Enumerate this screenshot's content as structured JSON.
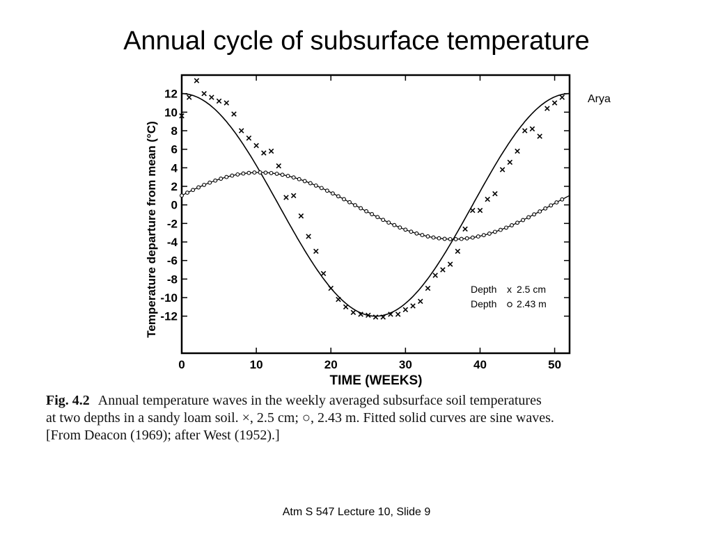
{
  "slide": {
    "title": "Annual cycle of subsurface temperature",
    "credit": "Arya",
    "footer": "Atm S 547  Lecture 10, Slide 9"
  },
  "caption": {
    "label": "Fig. 4.2",
    "line1": "Annual temperature waves in the weekly averaged subsurface soil temperatures",
    "line2": "at two depths in a sandy loam soil. ×, 2.5 cm; ○, 2.43 m. Fitted solid curves are sine waves.",
    "line3": "[From Deacon (1969); after West (1952).]"
  },
  "chart_data": {
    "type": "scatter",
    "xlabel": "TIME (WEEKS)",
    "ylabel": "Temperature departure from mean (°C)",
    "xlim": [
      0,
      52
    ],
    "ylim": [
      -16,
      14
    ],
    "xticks": [
      0,
      10,
      20,
      30,
      40,
      50
    ],
    "yticks": [
      12,
      10,
      8,
      6,
      4,
      2,
      0,
      -2,
      -4,
      -6,
      -8,
      -10,
      -12
    ],
    "legend": {
      "placement": "lower-right",
      "entries": [
        {
          "prefix": "Depth",
          "marker": "x",
          "text": "2.5 cm"
        },
        {
          "prefix": "Depth",
          "marker": "o",
          "text": "2.43 m"
        }
      ]
    },
    "series": [
      {
        "marker": "x",
        "fit": "sine",
        "fit_params": {
          "mean": 0,
          "amplitude": 12,
          "period": 52,
          "peak_week": 0
        },
        "x": [
          0,
          1,
          2,
          3,
          4,
          5,
          6,
          7,
          8,
          9,
          10,
          11,
          12,
          13,
          14,
          15,
          16,
          17,
          18,
          19,
          20,
          21,
          22,
          23,
          24,
          25,
          26,
          27,
          28,
          29,
          30,
          31,
          32,
          33,
          34,
          35,
          36,
          37,
          38,
          39,
          40,
          41,
          42,
          43,
          44,
          45,
          46,
          47,
          48,
          49,
          50,
          51
        ],
        "y": [
          9.6,
          11.6,
          13.4,
          12.0,
          11.6,
          11.2,
          11.0,
          9.8,
          8.0,
          7.2,
          6.4,
          5.6,
          5.8,
          4.2,
          0.8,
          1.0,
          -1.2,
          -3.4,
          -5.0,
          -7.4,
          -9.0,
          -10.2,
          -11.0,
          -11.6,
          -11.8,
          -11.9,
          -12.1,
          -12.1,
          -11.8,
          -11.8,
          -11.3,
          -10.9,
          -10.4,
          -9.0,
          -7.6,
          -7.0,
          -6.4,
          -5.0,
          -2.6,
          -0.6,
          -0.6,
          0.6,
          1.2,
          3.8,
          4.6,
          5.8,
          8.0,
          8.2,
          7.4,
          10.4,
          11.0,
          11.6
        ]
      },
      {
        "marker": "o",
        "fit": "sine",
        "fit_params": {
          "mean": -0.1,
          "amplitude": 3.6,
          "period": 52,
          "peak_week": 10.4
        },
        "x_start": 0,
        "x_end": 51,
        "step": 0.75
      }
    ]
  }
}
